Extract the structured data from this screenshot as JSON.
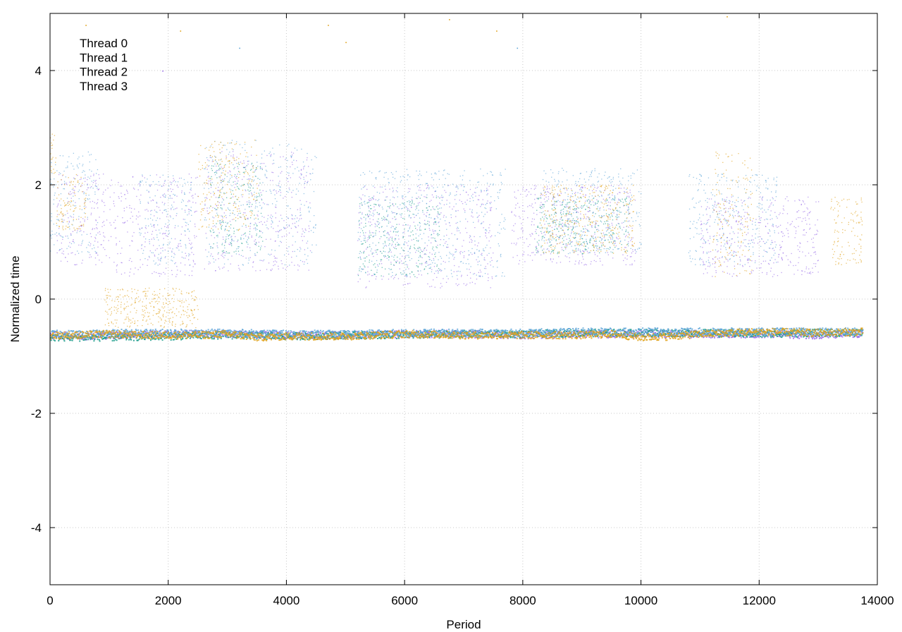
{
  "chart_data": {
    "type": "scatter",
    "title": "",
    "xlabel": "Period",
    "ylabel": "Normalized time",
    "xlim": [
      0,
      14000
    ],
    "ylim": [
      -5,
      5
    ],
    "x_ticks": [
      0,
      2000,
      4000,
      6000,
      8000,
      10000,
      12000,
      14000
    ],
    "y_ticks": [
      -4,
      -2,
      0,
      2,
      4
    ],
    "grid": true,
    "legend_position": "top-left",
    "colors": {
      "thread0": "#9a6ee8",
      "thread1": "#1f9e8c",
      "thread2": "#5fa6d8",
      "thread3": "#e0a21a"
    },
    "series": [
      {
        "name": "Thread 0",
        "baseline": [
          [
            0,
            -0.62
          ],
          [
            500,
            -0.64
          ],
          [
            1000,
            -0.62
          ],
          [
            2000,
            -0.6
          ],
          [
            3000,
            -0.6
          ],
          [
            4000,
            -0.62
          ],
          [
            5000,
            -0.62
          ],
          [
            6000,
            -0.6
          ],
          [
            7000,
            -0.6
          ],
          [
            8000,
            -0.62
          ],
          [
            9000,
            -0.6
          ],
          [
            10000,
            -0.6
          ],
          [
            11000,
            -0.6
          ],
          [
            12000,
            -0.6
          ],
          [
            13000,
            -0.62
          ],
          [
            13750,
            -0.6
          ]
        ],
        "scatter_clusters": [
          {
            "x": [
              100,
              1100
            ],
            "y": [
              0.6,
              2.2
            ]
          },
          {
            "x": [
              1100,
              2500
            ],
            "y": [
              0.4,
              2.2
            ]
          },
          {
            "x": [
              2600,
              4400
            ],
            "y": [
              0.5,
              2.6
            ]
          },
          {
            "x": [
              5200,
              7500
            ],
            "y": [
              0.2,
              2.0
            ]
          },
          {
            "x": [
              7800,
              9900
            ],
            "y": [
              0.6,
              2.0
            ]
          },
          {
            "x": [
              11000,
              13000
            ],
            "y": [
              0.4,
              1.8
            ]
          }
        ]
      },
      {
        "name": "Thread 1",
        "baseline": [
          [
            0,
            -0.66
          ],
          [
            500,
            -0.66
          ],
          [
            1000,
            -0.66
          ],
          [
            2000,
            -0.64
          ],
          [
            3000,
            -0.62
          ],
          [
            4000,
            -0.64
          ],
          [
            5000,
            -0.62
          ],
          [
            6000,
            -0.62
          ],
          [
            7000,
            -0.6
          ],
          [
            8000,
            -0.6
          ],
          [
            9000,
            -0.58
          ],
          [
            10000,
            -0.58
          ],
          [
            11000,
            -0.58
          ],
          [
            12000,
            -0.6
          ],
          [
            13000,
            -0.58
          ],
          [
            13750,
            -0.58
          ]
        ],
        "scatter_clusters": [
          {
            "x": [
              2700,
              3600
            ],
            "y": [
              0.8,
              2.4
            ]
          },
          {
            "x": [
              5200,
              6600
            ],
            "y": [
              0.4,
              1.8
            ]
          },
          {
            "x": [
              8200,
              9800
            ],
            "y": [
              0.8,
              1.8
            ]
          }
        ]
      },
      {
        "name": "Thread 2",
        "baseline": [
          [
            0,
            -0.6
          ],
          [
            500,
            -0.6
          ],
          [
            1000,
            -0.58
          ],
          [
            2000,
            -0.58
          ],
          [
            3000,
            -0.58
          ],
          [
            4000,
            -0.6
          ],
          [
            5000,
            -0.6
          ],
          [
            6000,
            -0.58
          ],
          [
            7000,
            -0.58
          ],
          [
            8000,
            -0.58
          ],
          [
            9000,
            -0.56
          ],
          [
            10000,
            -0.56
          ],
          [
            11000,
            -0.56
          ],
          [
            12000,
            -0.56
          ],
          [
            13000,
            -0.56
          ],
          [
            13750,
            -0.56
          ]
        ],
        "scatter_clusters": [
          {
            "x": [
              0,
              800
            ],
            "y": [
              0.8,
              2.6
            ]
          },
          {
            "x": [
              1500,
              2400
            ],
            "y": [
              0.6,
              2.2
            ]
          },
          {
            "x": [
              2600,
              4500
            ],
            "y": [
              0.6,
              2.8
            ]
          },
          {
            "x": [
              5200,
              7700
            ],
            "y": [
              0.4,
              2.3
            ]
          },
          {
            "x": [
              8300,
              10000
            ],
            "y": [
              0.8,
              2.3
            ]
          },
          {
            "x": [
              10800,
              12300
            ],
            "y": [
              0.6,
              2.2
            ]
          }
        ]
      },
      {
        "name": "Thread 3",
        "baseline": [
          [
            0,
            -0.62
          ],
          [
            500,
            -0.62
          ],
          [
            1000,
            -0.6
          ],
          [
            1500,
            -0.62
          ],
          [
            2000,
            -0.62
          ],
          [
            2500,
            -0.62
          ],
          [
            3000,
            -0.6
          ],
          [
            3500,
            -0.66
          ],
          [
            4000,
            -0.64
          ],
          [
            5000,
            -0.64
          ],
          [
            6000,
            -0.6
          ],
          [
            7000,
            -0.62
          ],
          [
            8000,
            -0.62
          ],
          [
            9000,
            -0.62
          ],
          [
            9500,
            -0.6
          ],
          [
            10000,
            -0.66
          ],
          [
            10500,
            -0.64
          ],
          [
            11000,
            -0.6
          ],
          [
            12000,
            -0.56
          ],
          [
            13000,
            -0.58
          ],
          [
            13750,
            -0.56
          ]
        ],
        "scatter_clusters": [
          {
            "x": [
              0,
              100
            ],
            "y": [
              2.2,
              3.0
            ]
          },
          {
            "x": [
              100,
              600
            ],
            "y": [
              1.2,
              2.2
            ]
          },
          {
            "x": [
              900,
              2500
            ],
            "y": [
              -0.5,
              0.2
            ]
          },
          {
            "x": [
              2500,
              3500
            ],
            "y": [
              1.2,
              2.8
            ]
          },
          {
            "x": [
              8300,
              9900
            ],
            "y": [
              0.8,
              2.0
            ]
          },
          {
            "x": [
              11200,
              11900
            ],
            "y": [
              0.4,
              2.6
            ]
          },
          {
            "x": [
              13200,
              13750
            ],
            "y": [
              0.6,
              1.8
            ]
          }
        ]
      }
    ],
    "outliers": [
      {
        "x": 4700,
        "y": 4.8,
        "series": "Thread 3"
      },
      {
        "x": 6750,
        "y": 4.9,
        "series": "Thread 3"
      },
      {
        "x": 7550,
        "y": 4.7,
        "series": "Thread 3"
      },
      {
        "x": 11450,
        "y": 4.95,
        "series": "Thread 3"
      },
      {
        "x": 2200,
        "y": 4.7,
        "series": "Thread 3"
      },
      {
        "x": 3200,
        "y": 4.4,
        "series": "Thread 2"
      },
      {
        "x": 5000,
        "y": 4.5,
        "series": "Thread 3"
      },
      {
        "x": 1900,
        "y": 4.0,
        "series": "Thread 0"
      },
      {
        "x": 7900,
        "y": 4.4,
        "series": "Thread 2"
      },
      {
        "x": 600,
        "y": 4.8,
        "series": "Thread 3"
      }
    ]
  }
}
